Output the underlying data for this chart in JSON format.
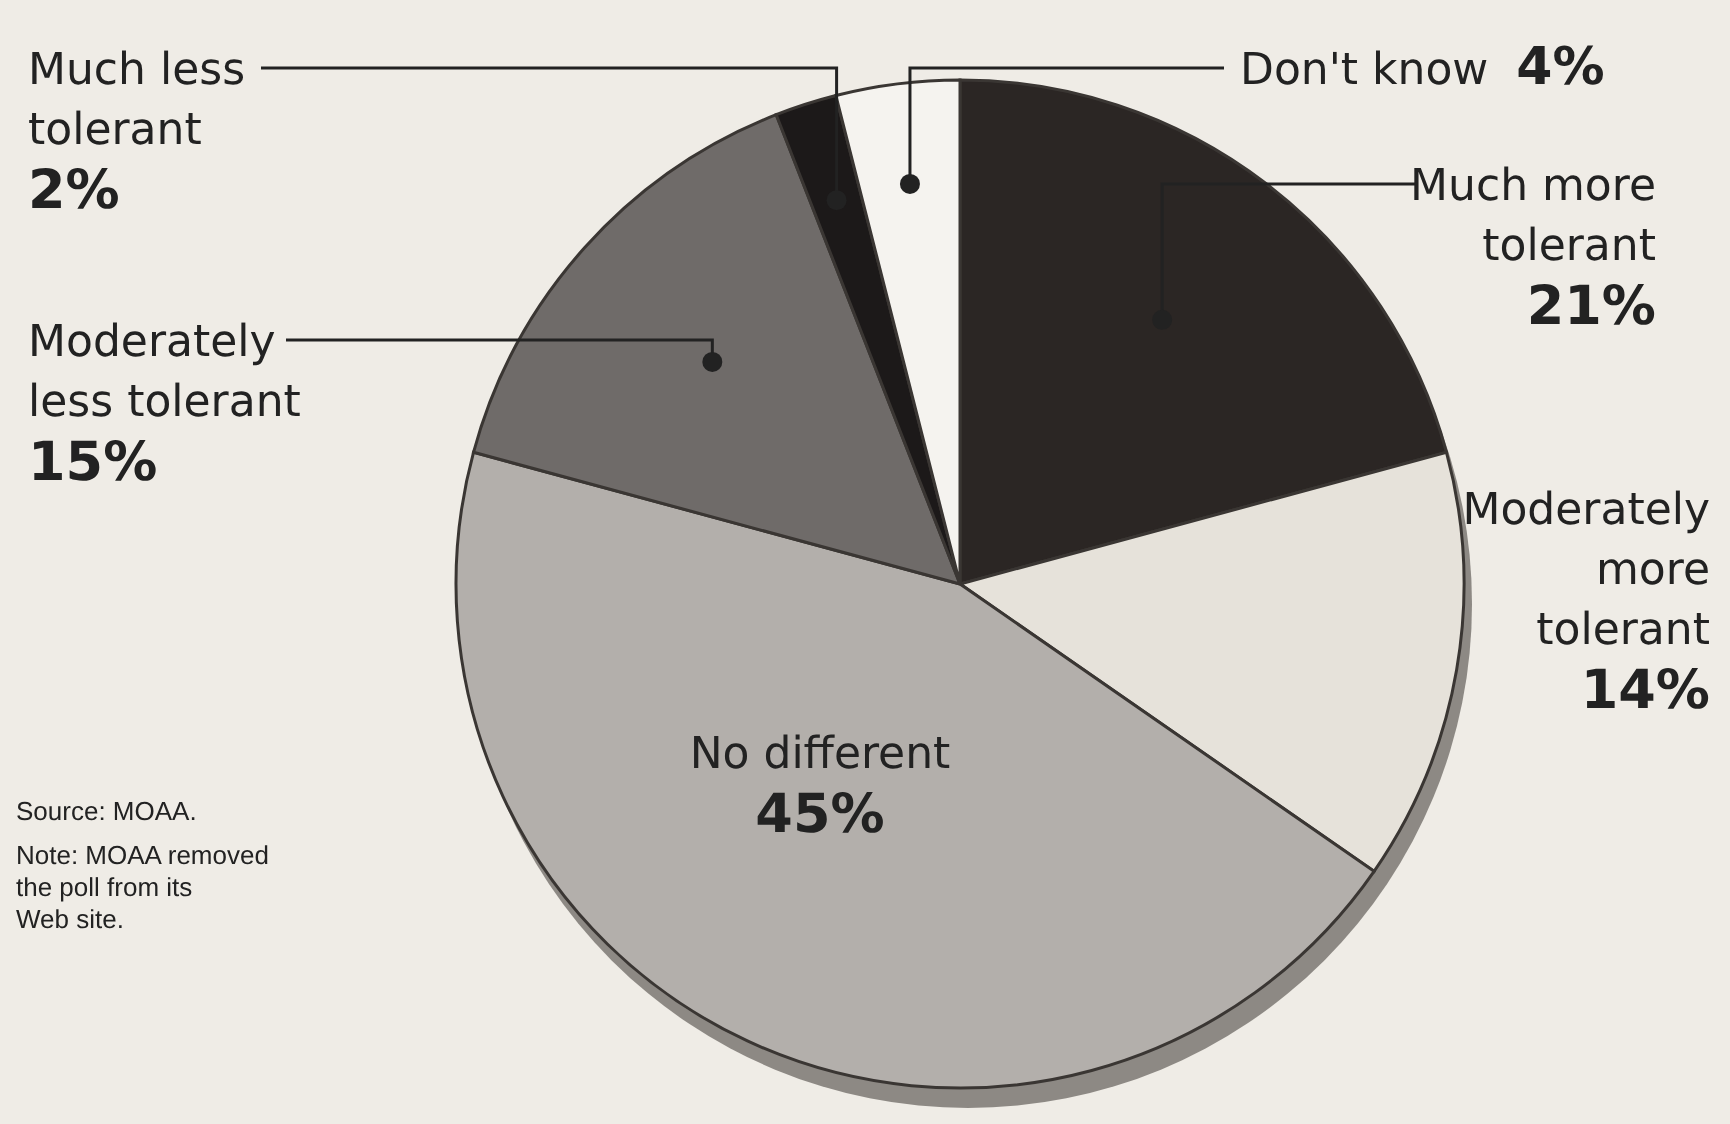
{
  "chart_data": {
    "type": "pie",
    "categories": [
      "Much more tolerant",
      "Moderately more tolerant",
      "No different",
      "Moderately less tolerant",
      "Much less tolerant",
      "Don't know"
    ],
    "values": [
      21,
      14,
      45,
      15,
      2,
      4
    ],
    "value_labels": [
      "21%",
      "14%",
      "45%",
      "15%",
      "2%",
      "4%"
    ],
    "colors": [
      "#2b2624",
      "#e6e2da",
      "#b3afab",
      "#6f6b69",
      "#1c1919",
      "#f5f3ef"
    ],
    "annotations": [
      "Source: MOAA.",
      "Note: MOAA removed the poll from its Web site."
    ]
  }
}
